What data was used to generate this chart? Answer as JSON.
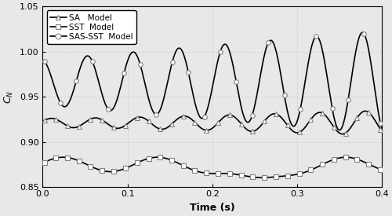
{
  "title": "",
  "xlabel": "Time (s)",
  "ylabel": "$C_N$",
  "xlim": [
    0,
    0.4
  ],
  "ylim": [
    0.85,
    1.05
  ],
  "yticks": [
    0.85,
    0.9,
    0.95,
    1.0,
    1.05
  ],
  "xticks": [
    0,
    0.1,
    0.2,
    0.3,
    0.4
  ],
  "legend": [
    "SA   Model",
    "SST  Model",
    "SAS-SST  Model"
  ],
  "figsize": [
    5.0,
    2.75
  ],
  "dpi": 100,
  "background_color": "#e8e8e8",
  "n_points": 1000,
  "n_markers_sas": 22,
  "n_markers_sa": 30,
  "n_markers_sst": 30
}
